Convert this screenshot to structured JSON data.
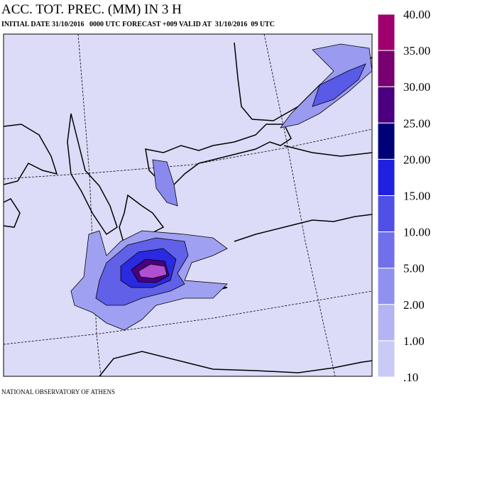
{
  "header": {
    "title": "ACC. TOT. PREC. (MM) IN 3 H",
    "subtitle": "INITIAL DATE 31/10/2016   0000 UTC FORECAST +009 VALID AT  31/10/2016  09 UTC"
  },
  "legend": {
    "labels": [
      "40.00",
      "35.00",
      "30.00",
      "25.00",
      "20.00",
      "15.00",
      "10.00",
      "5.00",
      "2.00",
      "1.00",
      ".10"
    ],
    "colors": [
      "#a0006e",
      "#780070",
      "#4a0080",
      "#000078",
      "#2020e0",
      "#5050e6",
      "#7070ea",
      "#9090ee",
      "#b4b4f2",
      "#cacaf6"
    ]
  },
  "footer": "NATIONAL OBSERVATORY OF ATHENS"
}
